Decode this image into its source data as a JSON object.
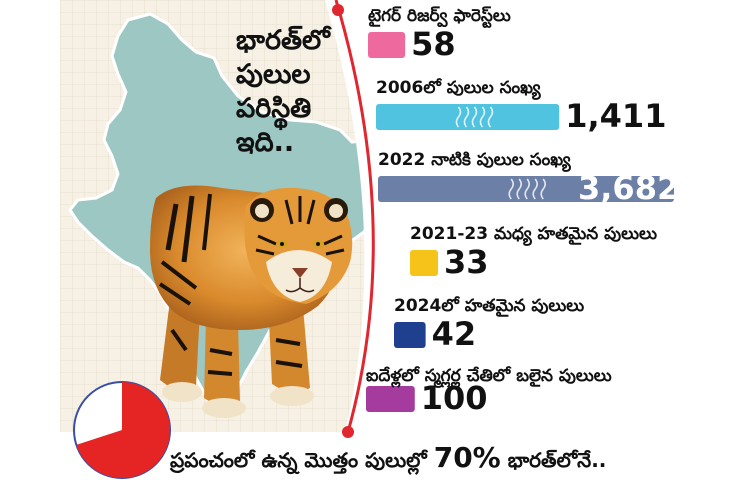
{
  "title_lines": [
    "భారత్‌లో",
    "పులుల",
    "పరిస్థితి",
    "ఇది.."
  ],
  "footer": {
    "before": "ప్రపంచంలో ఉన్న మొత్తం పులుల్లో",
    "percent": "70%",
    "after": "భారత్‌లోనే.."
  },
  "colors": {
    "bar_pink": "#ee6a9e",
    "bar_cyan": "#4fc3df",
    "bar_slate": "#6c7fa6",
    "bar_yellow": "#f6c31a",
    "bar_navy": "#1f3f8f",
    "bar_purple": "#a53b9c",
    "map": "#9cc7c2",
    "map_outline": "#ffffff",
    "grid_bg": "#f6f1e4",
    "divider_red": "#e0262e",
    "pie_red": "#e52424"
  },
  "chart_data": {
    "type": "bar",
    "orientation": "horizontal",
    "categories": [
      "టైగర్ రిజర్వ్ ఫారెస్ట్‌లు",
      "2006లో పులుల సంఖ్య",
      "2022 నాటికి పులుల సంఖ్య",
      "2021-23 మధ్య హతమైన పులులు",
      "2024లో హతమైన పులులు",
      "ఐదేళ్లలో స్మగ్లర్ల చేతిలో బలైన పులులు"
    ],
    "values": [
      58,
      1411,
      3682,
      33,
      42,
      100
    ],
    "value_labels": [
      "58",
      "1,411",
      "3,682",
      "33",
      "42",
      "100"
    ],
    "bar_colors": [
      "#ee6a9e",
      "#4fc3df",
      "#6c7fa6",
      "#f6c31a",
      "#1f3f8f",
      "#a53b9c"
    ]
  },
  "pie": {
    "percent": 70
  }
}
